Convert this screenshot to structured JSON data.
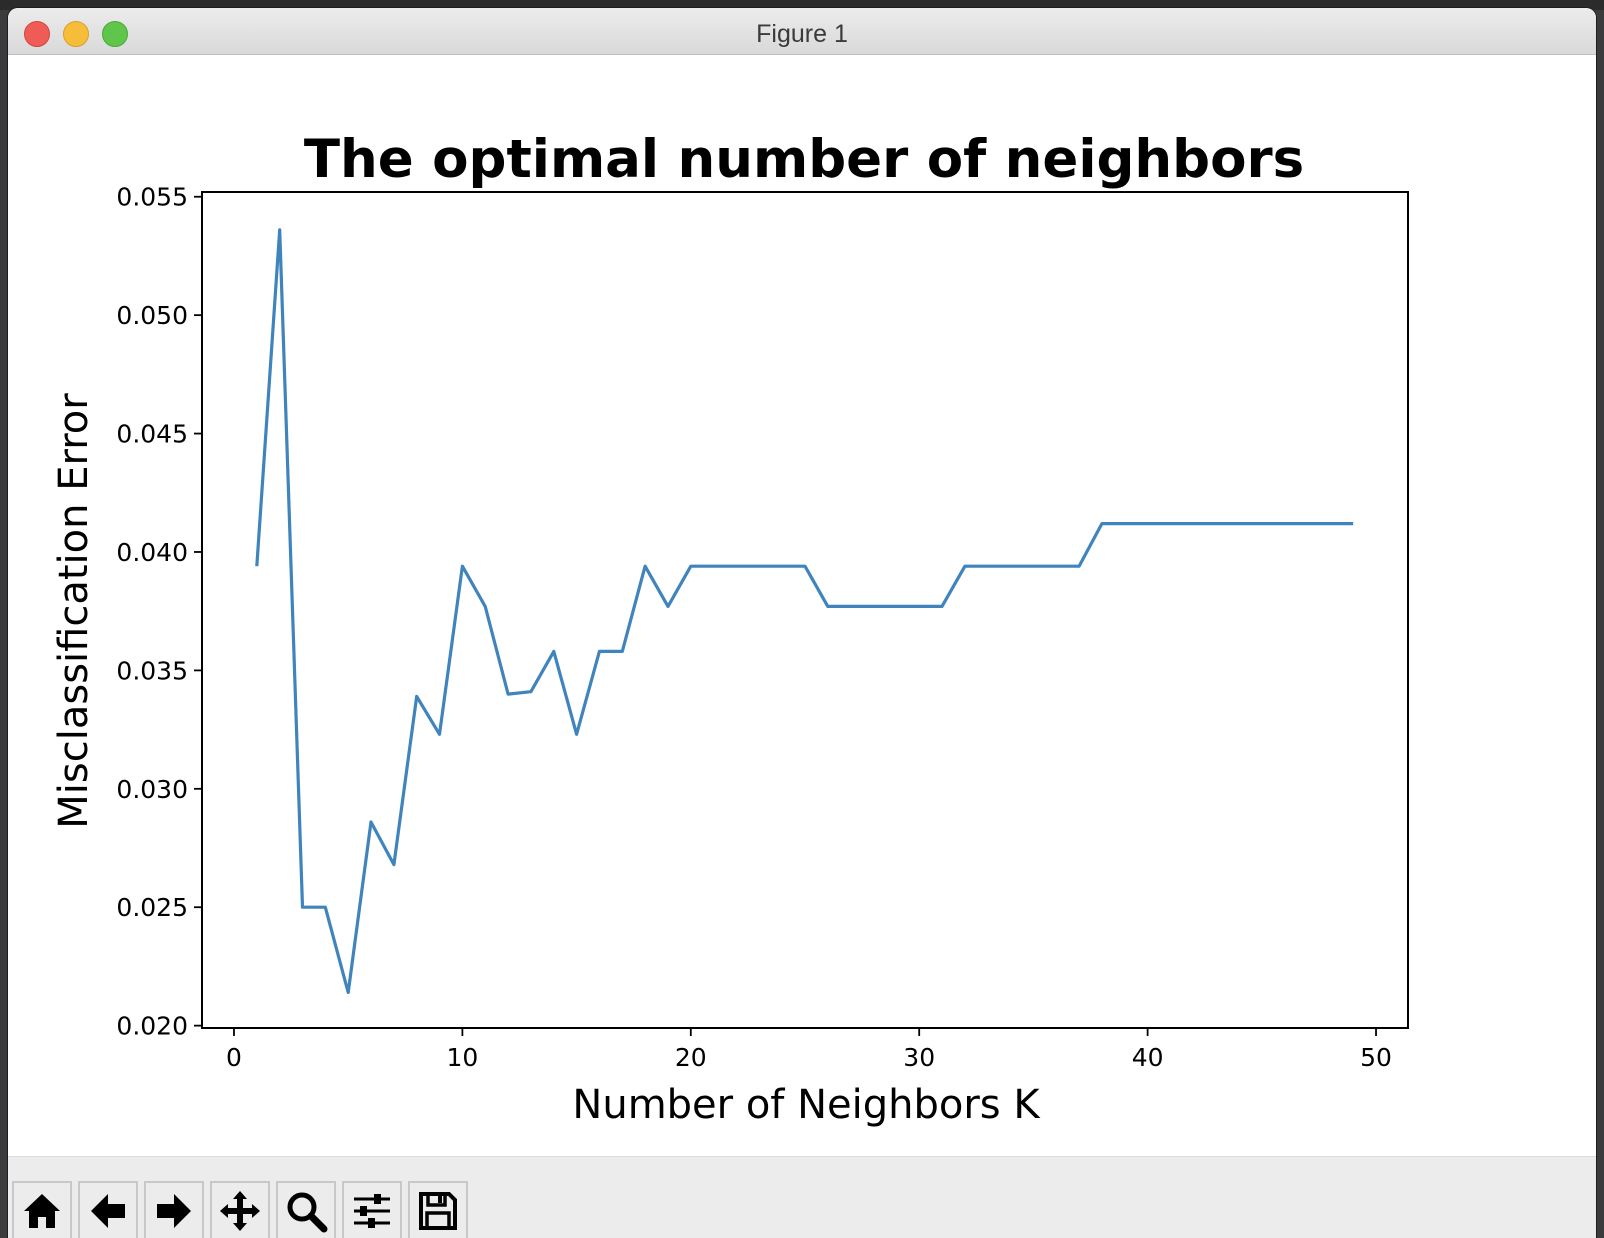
{
  "window": {
    "title": "Figure 1",
    "accent_colors": {
      "close": "#ee5c55",
      "minimize": "#f6bd3a",
      "maximize": "#5fc54b"
    }
  },
  "toolbar": {
    "buttons": [
      {
        "name": "home-button",
        "icon": "home-icon"
      },
      {
        "name": "back-button",
        "icon": "arrow-left-icon"
      },
      {
        "name": "forward-button",
        "icon": "arrow-right-icon"
      },
      {
        "name": "pan-button",
        "icon": "move-icon"
      },
      {
        "name": "zoom-button",
        "icon": "magnifier-icon"
      },
      {
        "name": "configure-subplots-button",
        "icon": "sliders-icon"
      },
      {
        "name": "save-button",
        "icon": "floppy-disk-icon"
      }
    ]
  },
  "chart_data": {
    "type": "line",
    "title": "The optimal number of neighbors",
    "xlabel": "Number of Neighbors K",
    "ylabel": "Misclassification Error",
    "xlim": [
      -1.4,
      51.4
    ],
    "ylim": [
      0.0199,
      0.0552
    ],
    "xticks": [
      0,
      10,
      20,
      30,
      40,
      50
    ],
    "xtick_labels": [
      "0",
      "10",
      "20",
      "30",
      "40",
      "50"
    ],
    "yticks": [
      0.02,
      0.025,
      0.03,
      0.035,
      0.04,
      0.045,
      0.05,
      0.055
    ],
    "ytick_labels": [
      "0.020",
      "0.025",
      "0.030",
      "0.035",
      "0.040",
      "0.045",
      "0.050",
      "0.055"
    ],
    "grid": false,
    "series": [
      {
        "color": "#3f84bd",
        "x": [
          1,
          2,
          3,
          4,
          5,
          6,
          7,
          8,
          9,
          10,
          11,
          12,
          13,
          14,
          15,
          16,
          17,
          18,
          19,
          20,
          21,
          22,
          23,
          24,
          25,
          26,
          27,
          28,
          29,
          30,
          31,
          32,
          33,
          34,
          35,
          36,
          37,
          38,
          39,
          40,
          41,
          42,
          43,
          44,
          45,
          46,
          47,
          48,
          49
        ],
        "values": [
          0.0394,
          0.0536,
          0.025,
          0.025,
          0.0214,
          0.0286,
          0.0268,
          0.0339,
          0.0323,
          0.0394,
          0.0377,
          0.034,
          0.0341,
          0.0358,
          0.0323,
          0.0358,
          0.0358,
          0.0394,
          0.0377,
          0.0394,
          0.0394,
          0.0394,
          0.0394,
          0.0394,
          0.0394,
          0.0377,
          0.0377,
          0.0377,
          0.0377,
          0.0377,
          0.0377,
          0.0394,
          0.0394,
          0.0394,
          0.0394,
          0.0394,
          0.0394,
          0.0412,
          0.0412,
          0.0412,
          0.0412,
          0.0412,
          0.0412,
          0.0412,
          0.0412,
          0.0412,
          0.0412,
          0.0412,
          0.0412
        ]
      }
    ]
  }
}
